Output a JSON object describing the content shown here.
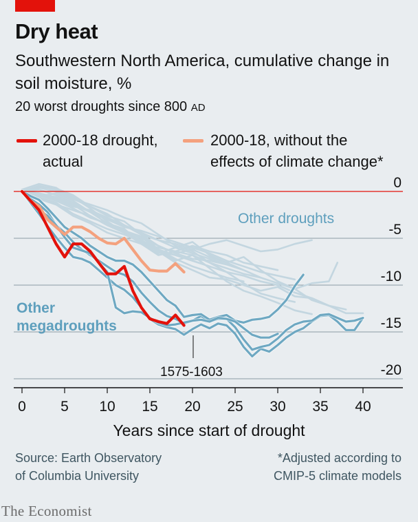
{
  "header": {
    "title": "Dry heat",
    "subtitle": "Southwestern North America, cumulative change in soil moisture, %",
    "subsubtitle_main": "20 worst droughts since 800 ",
    "subsubtitle_era": "AD"
  },
  "legend": {
    "actual_line1": "2000-18 drought,",
    "actual_line2": "actual",
    "adjusted_line1": "2000-18, without the",
    "adjusted_line2": "effects of climate change*"
  },
  "colors": {
    "background": "#e9edf0",
    "actual": "#e3120b",
    "adjusted": "#f4a17e",
    "megadrought": "#6ea8c2",
    "other_drought": "#c3d6e0",
    "zero_line": "#e3120b",
    "gridline": "#8a9aa3",
    "label_blue": "#5e9fbd"
  },
  "chart_data": {
    "type": "line",
    "xlabel": "Years since start of drought",
    "ylabel": "",
    "xlim": [
      0,
      40
    ],
    "ylim": [
      -20,
      0
    ],
    "x_ticks": [
      "0",
      "5",
      "10",
      "15",
      "20",
      "25",
      "30",
      "35",
      "40"
    ],
    "y_ticks": [
      "0",
      "-5",
      "-10",
      "-15",
      "-20"
    ],
    "annotations": {
      "other_droughts": "Other droughts",
      "megadroughts_line1": "Other",
      "megadroughts_line2": "megadroughts",
      "period": "1575-1603"
    },
    "series": [
      {
        "name": "2000-18 drought, actual",
        "kind": "actual",
        "x": [
          0,
          1,
          2,
          3,
          4,
          5,
          6,
          7,
          8,
          9,
          10,
          11,
          12,
          13,
          14,
          15,
          16,
          17,
          18,
          19
        ],
        "y": [
          0,
          -1,
          -2,
          -3.8,
          -5.6,
          -7,
          -5.6,
          -5.6,
          -6.4,
          -7.6,
          -8.8,
          -8.8,
          -8,
          -10.6,
          -12.4,
          -13.6,
          -13.9,
          -14.1,
          -13.2,
          -14.3
        ]
      },
      {
        "name": "2000-18, without the effects of climate change*",
        "kind": "adjusted",
        "x": [
          0,
          1,
          2,
          3,
          4,
          5,
          6,
          7,
          8,
          9,
          10,
          11,
          12,
          13,
          14,
          15,
          16,
          17,
          18,
          19
        ],
        "y": [
          0,
          -1,
          -1.6,
          -3,
          -3.8,
          -4.6,
          -3.8,
          -3.8,
          -4.3,
          -5,
          -5.5,
          -5.6,
          -5,
          -6.2,
          -7.4,
          -8.4,
          -8.5,
          -8.5,
          -7.7,
          -8.6
        ]
      },
      {
        "kind": "megadrought",
        "x": [
          0,
          1,
          2,
          3,
          4,
          5,
          6,
          7,
          8,
          9,
          10,
          11,
          12,
          13,
          14,
          15,
          16,
          17,
          18,
          19,
          20,
          21,
          22,
          23,
          24,
          25,
          26,
          27,
          28,
          29,
          30,
          31,
          32,
          33,
          34,
          35,
          36,
          37,
          38,
          39,
          40
        ],
        "y": [
          0,
          -1.2,
          -2.4,
          -3.7,
          -4.9,
          -6,
          -7,
          -7.2,
          -7.6,
          -8.4,
          -9.2,
          -10,
          -10.5,
          -11.3,
          -12.4,
          -13.6,
          -14.2,
          -14.5,
          -14.7,
          -15.3,
          -14.7,
          -14.2,
          -14.6,
          -14.1,
          -14.3,
          -15.2,
          -16.6,
          -17.6,
          -16.8,
          -17.1,
          -16.4,
          -15.6,
          -15,
          -14.6,
          -13.9,
          -13.3,
          -13.2,
          -13.9,
          -14.8,
          -14.8,
          -13.5
        ]
      },
      {
        "kind": "megadrought",
        "x": [
          0,
          1,
          2,
          3,
          4,
          5,
          6,
          7,
          8,
          9,
          10,
          11,
          12,
          13,
          14,
          15,
          16,
          17,
          18,
          19,
          20,
          21,
          22,
          23,
          24,
          25,
          26,
          27,
          28,
          29,
          30,
          31,
          32,
          33,
          34,
          35,
          36,
          37,
          38,
          39,
          40
        ],
        "y": [
          0,
          -0.8,
          -1.4,
          -2.2,
          -3.6,
          -4.4,
          -5.4,
          -6.2,
          -6.8,
          -7.4,
          -8,
          -8.6,
          -8.9,
          -9.6,
          -10.8,
          -11.8,
          -12.7,
          -13.3,
          -13.6,
          -14.1,
          -13.8,
          -13.3,
          -13.9,
          -13.6,
          -13.6,
          -14.5,
          -15.8,
          -16.9,
          -16.6,
          -16.4,
          -15.7,
          -14.8,
          -14.2,
          -13.9,
          -13.8,
          -13.2,
          -13.1,
          -13.5,
          -13.9,
          -13.8,
          -13.5
        ]
      },
      {
        "kind": "megadrought",
        "x": [
          0,
          1,
          2,
          3,
          4,
          5,
          6,
          7,
          8,
          9,
          10,
          11,
          12,
          13,
          14,
          15,
          16,
          17,
          18,
          19,
          20,
          21,
          22,
          23,
          24,
          25,
          26,
          27,
          28,
          29,
          30,
          31,
          32,
          33
        ],
        "y": [
          0,
          -0.5,
          -0.9,
          -1.8,
          -2.8,
          -3.8,
          -4.4,
          -5,
          -5.8,
          -6.4,
          -7,
          -7.4,
          -7.4,
          -7.8,
          -8.6,
          -9.6,
          -10.6,
          -11.6,
          -12.2,
          -13.4,
          -13.2,
          -13.1,
          -13.7,
          -13.4,
          -13.2,
          -13.8,
          -14,
          -13.7,
          -13.6,
          -13.4,
          -12.6,
          -11.6,
          -10.1,
          -8.9
        ]
      },
      {
        "kind": "megadrought",
        "x": [
          0,
          1,
          2,
          3,
          4,
          5,
          6,
          7,
          8,
          9,
          10,
          11,
          12,
          13,
          14,
          15,
          16,
          17,
          18,
          19,
          20,
          21,
          22,
          23,
          24,
          25,
          26,
          27,
          28,
          29,
          30
        ],
        "y": [
          0,
          -1,
          -2,
          -2.6,
          -3.6,
          -4.9,
          -6,
          -6.3,
          -6.6,
          -7.6,
          -8.6,
          -12.4,
          -13,
          -12.8,
          -12.9,
          -13.5,
          -14,
          -14.3,
          -14.2,
          -14,
          -13.8,
          -13.7,
          -13.9,
          -13.5,
          -13.6,
          -13.9,
          -14.6,
          -15.3,
          -15.6,
          -15.6,
          -15.2
        ]
      },
      {
        "kind": "other",
        "x": [
          0,
          2,
          4,
          6,
          8,
          10,
          12,
          14,
          16,
          18,
          20,
          22,
          24,
          26,
          28,
          30,
          32,
          34,
          36
        ],
        "y": [
          0,
          -0.5,
          -0.2,
          -1,
          -2.2,
          -3.4,
          -4,
          -5.6,
          -6.6,
          -6,
          -5.4,
          -6.8,
          -7.6,
          -7,
          -8.4,
          -9.6,
          -10.4,
          -11.6,
          -12.2
        ]
      },
      {
        "kind": "other",
        "x": [
          0,
          2,
          4,
          6,
          8,
          10,
          12,
          14,
          16,
          18,
          20,
          22,
          24,
          26,
          28,
          30,
          32,
          34
        ],
        "y": [
          0,
          0.5,
          0.3,
          -0.4,
          -1.6,
          -2.6,
          -3.2,
          -4.6,
          -6.2,
          -7.4,
          -6.8,
          -8.2,
          -9.6,
          -10.6,
          -11.2,
          -11.9,
          -12.7,
          -13.1
        ]
      },
      {
        "kind": "other",
        "x": [
          0,
          2,
          4,
          6,
          8,
          10,
          12,
          14,
          16,
          18,
          20,
          22,
          24,
          26,
          28,
          30,
          32
        ],
        "y": [
          0.2,
          0.8,
          0.4,
          -0.8,
          -1.4,
          -2,
          -2.8,
          -3.4,
          -4.6,
          -5.8,
          -6.4,
          -7.6,
          -8.6,
          -9.8,
          -10.9,
          -11.4,
          -11.8
        ]
      },
      {
        "kind": "other",
        "x": [
          0,
          2,
          4,
          6,
          8,
          10,
          12,
          14,
          16,
          18,
          20,
          22,
          24,
          26
        ],
        "y": [
          0,
          -0.8,
          -1.4,
          -2,
          -2.6,
          -3.6,
          -4.4,
          -5.2,
          -6.2,
          -7.2,
          -8,
          -8.6,
          -9.2,
          -9.6
        ]
      },
      {
        "kind": "other",
        "x": [
          0,
          2,
          4,
          6,
          8,
          10,
          12,
          14,
          16,
          18,
          20,
          22,
          24,
          26,
          28,
          30,
          32,
          34,
          36,
          38,
          40
        ],
        "y": [
          0,
          -0.4,
          -1,
          -1.8,
          -2.8,
          -3.4,
          -4.2,
          -4.8,
          -6.4,
          -7.6,
          -8.4,
          -9.2,
          -9.4,
          -10,
          -10.6,
          -10.2,
          -11.2,
          -11.4,
          -12.2,
          -13,
          -13
        ]
      },
      {
        "kind": "other",
        "x": [
          0,
          2,
          4,
          6,
          8,
          10,
          12,
          14,
          16,
          18,
          20,
          22,
          24,
          26,
          28,
          30,
          32,
          34,
          36,
          37
        ],
        "y": [
          0,
          -0.6,
          -1.4,
          -2,
          -2.6,
          -3.6,
          -4.2,
          -5,
          -5.8,
          -6.6,
          -7.2,
          -7.4,
          -7.8,
          -8.4,
          -9.2,
          -9.8,
          -10.4,
          -9.8,
          -9.6,
          -7.6
        ]
      },
      {
        "kind": "other",
        "x": [
          0,
          2,
          4,
          6,
          8,
          10,
          12,
          14,
          16,
          18,
          20,
          22,
          24,
          26,
          28,
          30
        ],
        "y": [
          0,
          0.6,
          0.2,
          -0.6,
          -1.8,
          -3.2,
          -4.4,
          -5.6,
          -6.8,
          -6.4,
          -5.8,
          -6.4,
          -6.8,
          -7.6,
          -8,
          -8.4
        ]
      },
      {
        "kind": "other",
        "x": [
          0,
          2,
          4,
          6,
          8,
          10,
          12,
          14,
          16,
          18,
          20,
          22,
          24
        ],
        "y": [
          0,
          -0.4,
          -0.8,
          -1.6,
          -2,
          -2.8,
          -3.6,
          -4.6,
          -5.2,
          -6,
          -6.6,
          -7.2,
          -7.8
        ]
      },
      {
        "kind": "other",
        "x": [
          0,
          2,
          4,
          6,
          8,
          10,
          12,
          14,
          16,
          18,
          20,
          22,
          24,
          26,
          28,
          30,
          32,
          34
        ],
        "y": [
          0,
          0.2,
          -0.4,
          -1.2,
          -2.2,
          -3,
          -3.6,
          -4.6,
          -5.8,
          -6.6,
          -6.2,
          -5.6,
          -5.2,
          -5.8,
          -6.4,
          -6.2,
          -5.6,
          -5.2
        ]
      },
      {
        "kind": "other",
        "x": [
          0,
          2,
          4,
          6,
          8,
          10,
          12,
          14,
          16,
          18,
          20,
          22,
          24,
          26,
          28
        ],
        "y": [
          0,
          -0.8,
          -1.4,
          -2.6,
          -3.4,
          -4.4,
          -5,
          -5.6,
          -6,
          -6.4,
          -6.8,
          -7.6,
          -8.2,
          -8.8,
          -9.2
        ]
      },
      {
        "kind": "other",
        "x": [
          0,
          2,
          4,
          6,
          8,
          10,
          12,
          14,
          16,
          18,
          20,
          22,
          24,
          26,
          28,
          30,
          32,
          34,
          36,
          38
        ],
        "y": [
          0,
          -0.2,
          -0.6,
          -1.4,
          -2.6,
          -3.6,
          -4.4,
          -5.4,
          -6.2,
          -6.8,
          -7.4,
          -8,
          -8.6,
          -9,
          -9.6,
          -10,
          -10.8,
          -11.4,
          -12.2,
          -12.6
        ]
      },
      {
        "kind": "other",
        "x": [
          0,
          2,
          4,
          6,
          8,
          10,
          12,
          14,
          16,
          18,
          20,
          22,
          24,
          26
        ],
        "y": [
          0,
          0.4,
          0,
          -0.8,
          -1.6,
          -2.4,
          -3.6,
          -4.4,
          -5.2,
          -5.6,
          -6.2,
          -7,
          -7.6,
          -8.4
        ]
      },
      {
        "kind": "other",
        "x": [
          0,
          2,
          4,
          6,
          8,
          10,
          12,
          14,
          16,
          18,
          20,
          22
        ],
        "y": [
          0,
          -0.6,
          -1.2,
          -2.4,
          -3.2,
          -4,
          -4.6,
          -5.4,
          -6.4,
          -6.8,
          -7.4,
          -8
        ]
      },
      {
        "kind": "other",
        "x": [
          0,
          2,
          4,
          6,
          8,
          10,
          12,
          14,
          16,
          18,
          20,
          22,
          24,
          26,
          28,
          30,
          32
        ],
        "y": [
          0,
          -0.2,
          -0.8,
          -1.4,
          -2.2,
          -3,
          -3.8,
          -4.2,
          -4.8,
          -5.4,
          -6,
          -6.6,
          -7.4,
          -8,
          -8.6,
          -9,
          -9.4
        ]
      }
    ]
  },
  "footer": {
    "source_line1": "Source: Earth Observatory",
    "source_line2": "of Columbia University",
    "note_line1": "*Adjusted according to",
    "note_line2": "CMIP-5 climate models",
    "brand": "The Economist"
  }
}
